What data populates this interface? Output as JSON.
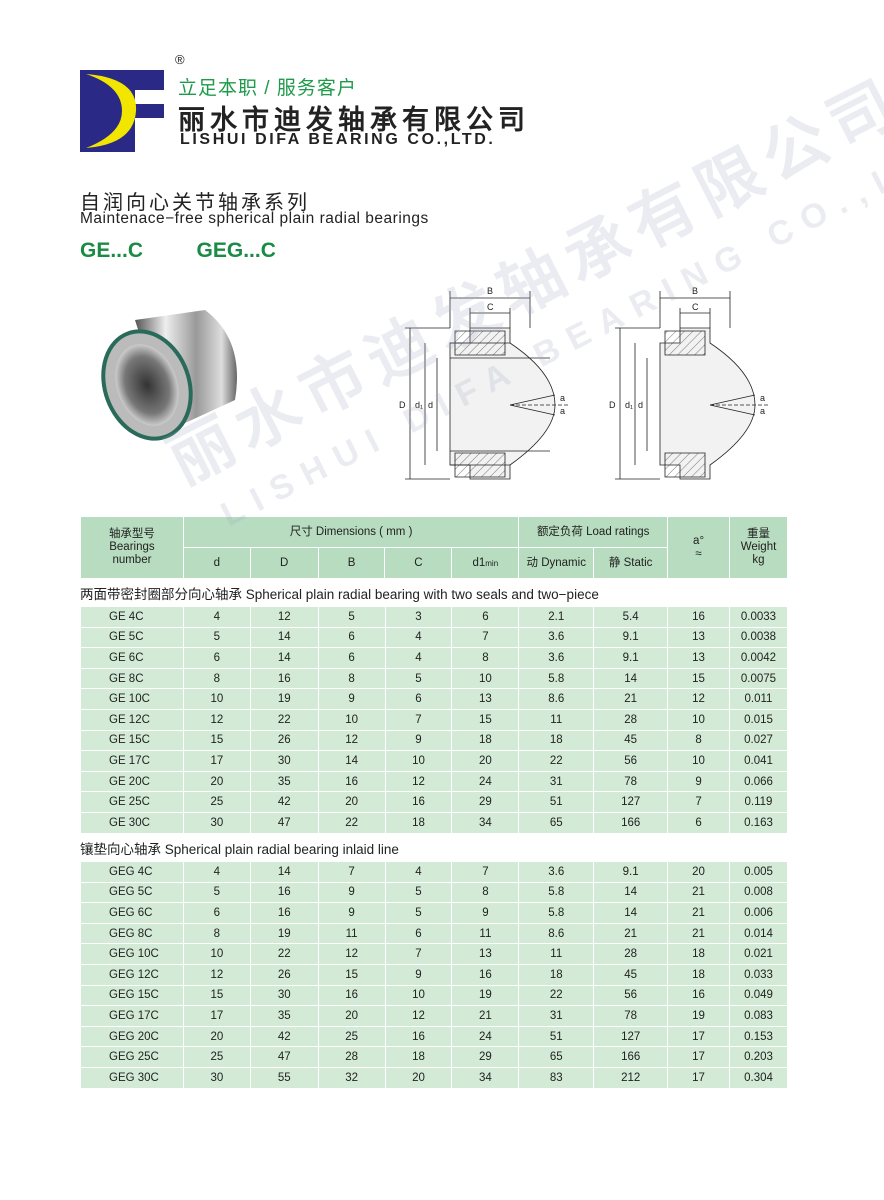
{
  "brand": {
    "registered": "®",
    "slogan": "立足本职 / 服务客户",
    "name_cn": "丽水市迪发轴承有限公司",
    "name_en": "LISHUI DIFA BEARING CO.,LTD.",
    "logo_text": "DF",
    "colors": {
      "logo_blue": "#2a2a86",
      "logo_yellow": "#f2e600",
      "green": "#1a8a45"
    }
  },
  "watermark": {
    "cn": "丽水市迪发轴承有限公司",
    "en": "LISHUI DIFA BEARING CO.,LTD."
  },
  "title": {
    "cn": "自润向心关节轴承系列",
    "en": "Maintenace−free spherical plain radial bearings",
    "series": "GE...C   GEG...C"
  },
  "diagram": {
    "labels": {
      "B": "B",
      "C": "C",
      "D": "D",
      "d1": "d₁",
      "d": "d",
      "a": "a"
    }
  },
  "table": {
    "header": {
      "bearing_cn": "轴承型号",
      "bearing_en1": "Bearings",
      "bearing_en2": "number",
      "dimensions": "尺寸 Dimensions ( mm )",
      "d": "d",
      "D": "D",
      "B": "B",
      "C": "C",
      "d1": "d1",
      "d1_sub": "min",
      "load": "额定负荷 Load ratings",
      "dynamic": "动 Dynamic",
      "static": "静 Static",
      "angle": "a°",
      "angle_sub": "≈",
      "weight_cn": "重量",
      "weight_en": "Weight",
      "weight_unit": "kg"
    },
    "sections": [
      {
        "title": "两面带密封圈部分向心轴承 Spherical plain radial bearing with two seals and two−piece",
        "rows": [
          [
            "GE 4C",
            "4",
            "12",
            "5",
            "3",
            "6",
            "2.1",
            "5.4",
            "16",
            "0.0033"
          ],
          [
            "GE 5C",
            "5",
            "14",
            "6",
            "4",
            "7",
            "3.6",
            "9.1",
            "13",
            "0.0038"
          ],
          [
            "GE 6C",
            "6",
            "14",
            "6",
            "4",
            "8",
            "3.6",
            "9.1",
            "13",
            "0.0042"
          ],
          [
            "GE 8C",
            "8",
            "16",
            "8",
            "5",
            "10",
            "5.8",
            "14",
            "15",
            "0.0075"
          ],
          [
            "GE 10C",
            "10",
            "19",
            "9",
            "6",
            "13",
            "8.6",
            "21",
            "12",
            "0.011"
          ],
          [
            "GE 12C",
            "12",
            "22",
            "10",
            "7",
            "15",
            "11",
            "28",
            "10",
            "0.015"
          ],
          [
            "GE 15C",
            "15",
            "26",
            "12",
            "9",
            "18",
            "18",
            "45",
            "8",
            "0.027"
          ],
          [
            "GE 17C",
            "17",
            "30",
            "14",
            "10",
            "20",
            "22",
            "56",
            "10",
            "0.041"
          ],
          [
            "GE 20C",
            "20",
            "35",
            "16",
            "12",
            "24",
            "31",
            "78",
            "9",
            "0.066"
          ],
          [
            "GE 25C",
            "25",
            "42",
            "20",
            "16",
            "29",
            "51",
            "127",
            "7",
            "0.119"
          ],
          [
            "GE 30C",
            "30",
            "47",
            "22",
            "18",
            "34",
            "65",
            "166",
            "6",
            "0.163"
          ]
        ]
      },
      {
        "title": "镶垫向心轴承 Spherical plain radial bearing inlaid line",
        "rows": [
          [
            "GEG 4C",
            "4",
            "14",
            "7",
            "4",
            "7",
            "3.6",
            "9.1",
            "20",
            "0.005"
          ],
          [
            "GEG 5C",
            "5",
            "16",
            "9",
            "5",
            "8",
            "5.8",
            "14",
            "21",
            "0.008"
          ],
          [
            "GEG 6C",
            "6",
            "16",
            "9",
            "5",
            "9",
            "5.8",
            "14",
            "21",
            "0.006"
          ],
          [
            "GEG 8C",
            "8",
            "19",
            "11",
            "6",
            "11",
            "8.6",
            "21",
            "21",
            "0.014"
          ],
          [
            "GEG 10C",
            "10",
            "22",
            "12",
            "7",
            "13",
            "11",
            "28",
            "18",
            "0.021"
          ],
          [
            "GEG 12C",
            "12",
            "26",
            "15",
            "9",
            "16",
            "18",
            "45",
            "18",
            "0.033"
          ],
          [
            "GEG 15C",
            "15",
            "30",
            "16",
            "10",
            "19",
            "22",
            "56",
            "16",
            "0.049"
          ],
          [
            "GEG 17C",
            "17",
            "35",
            "20",
            "12",
            "21",
            "31",
            "78",
            "19",
            "0.083"
          ],
          [
            "GEG 20C",
            "20",
            "42",
            "25",
            "16",
            "24",
            "51",
            "127",
            "17",
            "0.153"
          ],
          [
            "GEG 25C",
            "25",
            "47",
            "28",
            "18",
            "29",
            "65",
            "166",
            "17",
            "0.203"
          ],
          [
            "GEG 30C",
            "30",
            "55",
            "32",
            "20",
            "34",
            "83",
            "212",
            "17",
            "0.304"
          ]
        ]
      }
    ]
  }
}
